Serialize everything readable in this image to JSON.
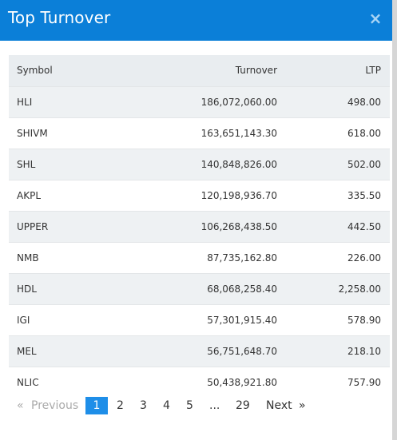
{
  "modal": {
    "title": "Top Turnover",
    "close_glyph": "×"
  },
  "table": {
    "headers": {
      "symbol": "Symbol",
      "turnover": "Turnover",
      "ltp": "LTP"
    },
    "rows": [
      {
        "symbol": "HLI",
        "turnover": "186,072,060.00",
        "ltp": "498.00"
      },
      {
        "symbol": "SHIVM",
        "turnover": "163,651,143.30",
        "ltp": "618.00"
      },
      {
        "symbol": "SHL",
        "turnover": "140,848,826.00",
        "ltp": "502.00"
      },
      {
        "symbol": "AKPL",
        "turnover": "120,198,936.70",
        "ltp": "335.50"
      },
      {
        "symbol": "UPPER",
        "turnover": "106,268,438.50",
        "ltp": "442.50"
      },
      {
        "symbol": "NMB",
        "turnover": "87,735,162.80",
        "ltp": "226.00"
      },
      {
        "symbol": "HDL",
        "turnover": "68,068,258.40",
        "ltp": "2,258.00"
      },
      {
        "symbol": "IGI",
        "turnover": "57,301,915.40",
        "ltp": "578.90"
      },
      {
        "symbol": "MEL",
        "turnover": "56,751,648.70",
        "ltp": "218.10"
      },
      {
        "symbol": "NLIC",
        "turnover": "50,438,921.80",
        "ltp": "757.90"
      }
    ]
  },
  "pagination": {
    "first_glyph": "«",
    "previous": "Previous",
    "pages": [
      "1",
      "2",
      "3",
      "4",
      "5"
    ],
    "ellipsis": "...",
    "last_page": "29",
    "next": "Next",
    "last_glyph": "»",
    "active_page": "1"
  },
  "colors": {
    "header_bg": "#0b7fd8",
    "active_page_bg": "#1e8ee8",
    "row_alt_bg": "#eef1f3"
  }
}
